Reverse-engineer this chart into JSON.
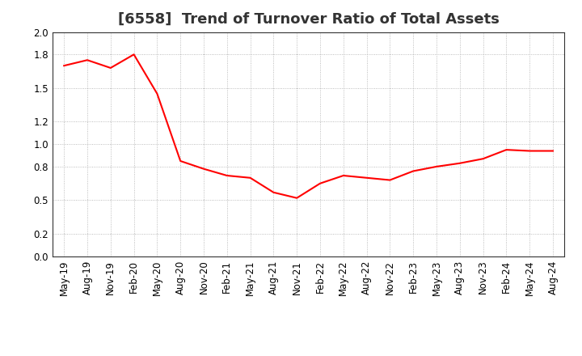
{
  "title": "[6558]  Trend of Turnover Ratio of Total Assets",
  "line_color": "#FF0000",
  "background_color": "#FFFFFF",
  "grid_color": "#AAAAAA",
  "ylim": [
    0.0,
    2.0
  ],
  "yticks": [
    0.0,
    0.2,
    0.5,
    0.8,
    1.0,
    1.2,
    1.5,
    1.8,
    2.0
  ],
  "values": [
    1.7,
    1.75,
    1.68,
    1.8,
    1.45,
    0.85,
    0.78,
    0.72,
    0.7,
    0.57,
    0.52,
    0.65,
    0.72,
    0.7,
    0.68,
    0.76,
    0.8,
    0.83,
    0.87,
    0.95,
    0.94,
    0.94
  ],
  "tick_labels": [
    "May-19",
    "Aug-19",
    "Nov-19",
    "Feb-20",
    "May-20",
    "Aug-20",
    "Nov-20",
    "Feb-21",
    "May-21",
    "Aug-21",
    "Nov-21",
    "Feb-22",
    "May-22",
    "Aug-22",
    "Nov-22",
    "Feb-23",
    "May-23",
    "Aug-23",
    "Nov-23",
    "Feb-24",
    "May-24",
    "Aug-24"
  ],
  "title_fontsize": 13,
  "tick_fontsize": 8.5,
  "line_width": 1.5
}
